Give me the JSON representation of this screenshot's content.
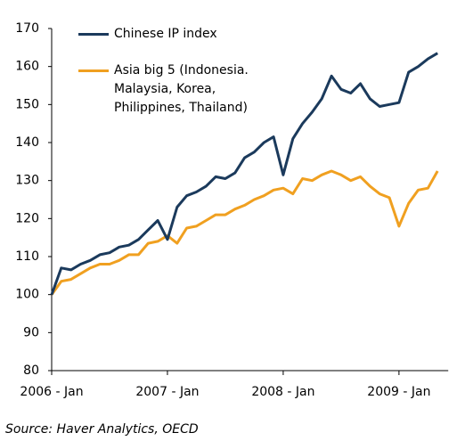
{
  "chart_data": {
    "type": "line",
    "categories": [
      "2006 - Jan",
      null,
      null,
      null,
      null,
      null,
      null,
      null,
      null,
      null,
      null,
      null,
      "2007 - Jan",
      null,
      null,
      null,
      null,
      null,
      null,
      null,
      null,
      null,
      null,
      null,
      "2008 - Jan",
      null,
      null,
      null,
      null,
      null,
      null,
      null,
      null,
      null,
      null,
      null,
      "2009 - Jan",
      null,
      null,
      null,
      null
    ],
    "series": [
      {
        "name": "Chinese IP index",
        "color": "#1b3a5c",
        "values": [
          100,
          107,
          106.5,
          108,
          109,
          110.5,
          111,
          112.5,
          113,
          114.5,
          117,
          119.5,
          114.5,
          123,
          126,
          127,
          128.5,
          131,
          130.5,
          132,
          136,
          137.5,
          140,
          141.5,
          131.5,
          141,
          145,
          148,
          151.5,
          157.5,
          154,
          153,
          155.5,
          151.5,
          149.5,
          150,
          150.5,
          158.5,
          160,
          162,
          163.5
        ]
      },
      {
        "name": "Asia big 5 (Indonesia. Malaysia, Korea, Philippines, Thailand)",
        "color": "#f0a020",
        "values": [
          100,
          103.5,
          104,
          105.5,
          107,
          108,
          108,
          109,
          110.5,
          110.5,
          113.5,
          114,
          115.5,
          113.5,
          117.5,
          118,
          119.5,
          121,
          121,
          122.5,
          123.5,
          125,
          126,
          127.5,
          128,
          126.5,
          130.5,
          130,
          131.5,
          132.5,
          131.5,
          130,
          131,
          128.5,
          126.5,
          125.5,
          118,
          124,
          127.5,
          128,
          132.5
        ]
      }
    ],
    "ylim": [
      80,
      170
    ],
    "yticks": [
      80,
      90,
      100,
      110,
      120,
      130,
      140,
      150,
      160,
      170
    ],
    "grid": false,
    "source": "Source: Haver Analytics, OECD"
  }
}
